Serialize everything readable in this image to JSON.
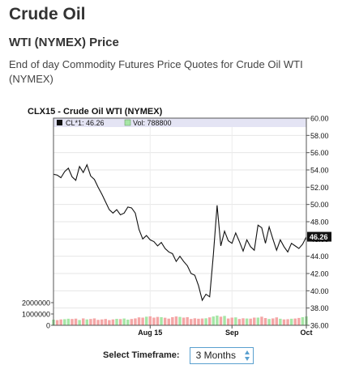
{
  "page": {
    "title": "Crude Oil",
    "subtitle": "WTI (NYMEX) Price",
    "description": "End of day Commodity Futures Price Quotes for Crude Oil WTI (NYMEX)"
  },
  "timeframe": {
    "label": "Select Timeframe:",
    "selected": "3 Months"
  },
  "colors": {
    "price_line": "#111111",
    "volume_bar": "#f4a6a6",
    "volume_bar_alt": "#a6e6a6",
    "legend_band": "#e4e4f4",
    "last_price_tag": "#111111"
  },
  "chart_data": {
    "type": "line",
    "title": "CLX15 - Crude Oil WTI (NYMEX)",
    "legend": [
      {
        "name": "CL*1: 46.26",
        "swatch": "price_line"
      },
      {
        "name": "Vol: 788800",
        "swatch": "volume_bar_alt"
      }
    ],
    "last_price_label": "46.26",
    "price_axis": {
      "side": "right",
      "ylim": [
        36,
        60
      ],
      "ticks": [
        "36.00",
        "38.00",
        "40.00",
        "42.00",
        "44.00",
        "46.00",
        "48.00",
        "50.00",
        "52.00",
        "54.00",
        "56.00",
        "58.00",
        "60.00"
      ]
    },
    "volume_axis": {
      "side": "left",
      "ylim": [
        0,
        2000000
      ],
      "ticks": [
        "0",
        "1000000",
        "2000000"
      ]
    },
    "x_ticks": [
      "Aug 15",
      "Sep",
      "Oct"
    ],
    "grid": true,
    "price": [
      53.5,
      53.4,
      53.1,
      53.8,
      54.2,
      53.2,
      52.8,
      54.4,
      53.7,
      54.6,
      53.3,
      52.9,
      52.0,
      51.2,
      50.3,
      49.4,
      49.0,
      49.4,
      48.8,
      49.0,
      49.7,
      49.6,
      49.0,
      47.1,
      46.0,
      46.4,
      45.9,
      45.7,
      45.2,
      45.6,
      44.9,
      44.5,
      44.3,
      43.4,
      44.0,
      43.4,
      42.9,
      42.0,
      41.8,
      40.6,
      38.9,
      39.6,
      39.3,
      44.2,
      49.9,
      45.2,
      46.9,
      45.8,
      45.5,
      46.7,
      45.7,
      44.6,
      45.9,
      45.1,
      44.7,
      47.6,
      47.3,
      45.5,
      47.4,
      46.0,
      44.7,
      45.9,
      45.1,
      44.5,
      45.5,
      45.2,
      44.9,
      45.4,
      46.26
    ],
    "volume": [
      500000,
      460000,
      520000,
      540000,
      580000,
      560000,
      590000,
      470000,
      610000,
      520000,
      560000,
      610000,
      480000,
      520000,
      560000,
      460000,
      520000,
      570000,
      550000,
      600000,
      500000,
      560000,
      610000,
      700000,
      680000,
      760000,
      790000,
      680000,
      740000,
      720000,
      670000,
      590000,
      720000,
      780000,
      740000,
      680000,
      720000,
      560000,
      620000,
      580000,
      600000,
      620000,
      700000,
      780000,
      860000,
      760000,
      830000,
      600000,
      680000,
      700000,
      560000,
      620000,
      600000,
      590000,
      680000,
      680000,
      760000,
      640000,
      560000,
      610000,
      700000,
      580000,
      520000,
      540000,
      580000,
      600000,
      650000,
      720000,
      788800
    ]
  }
}
